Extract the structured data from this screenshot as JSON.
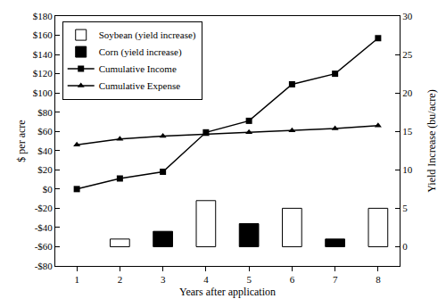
{
  "chart_data": {
    "type": "bar",
    "x_label": "Years after application",
    "y_label": "$ per acre",
    "y2_label": "Yield Increase (bu/acre)",
    "x": [
      1,
      2,
      3,
      4,
      5,
      6,
      7,
      8
    ],
    "xlim": [
      0.5,
      8.5
    ],
    "xticks": [
      1,
      2,
      3,
      4,
      5,
      6,
      7,
      8
    ],
    "ylim": [
      -80,
      180
    ],
    "yticks": [
      {
        "value": -80,
        "label": "-$80"
      },
      {
        "value": -60,
        "label": "-$60"
      },
      {
        "value": -40,
        "label": "-$40"
      },
      {
        "value": -20,
        "label": "-$20"
      },
      {
        "value": 0,
        "label": "$0"
      },
      {
        "value": 20,
        "label": "$20"
      },
      {
        "value": 40,
        "label": "$40"
      },
      {
        "value": 60,
        "label": "$60"
      },
      {
        "value": 80,
        "label": "$80"
      },
      {
        "value": 100,
        "label": "$100"
      },
      {
        "value": 120,
        "label": "$120"
      },
      {
        "value": 140,
        "label": "$140"
      },
      {
        "value": 160,
        "label": "$160"
      },
      {
        "value": 180,
        "label": "$180"
      }
    ],
    "y2lim": [
      -2.5,
      30
    ],
    "y2ticks": [
      0,
      5,
      10,
      15,
      20,
      25,
      30
    ],
    "grid": false,
    "legend": "upper left",
    "series": [
      {
        "name": "Soybean (yield increase)",
        "type": "bar",
        "axis": "y2",
        "color": "#ffffff",
        "values": [
          null,
          1,
          null,
          6,
          null,
          5,
          null,
          5
        ]
      },
      {
        "name": "Corn (yield increase)",
        "type": "bar",
        "axis": "y2",
        "color": "#000000",
        "values": [
          null,
          null,
          2,
          null,
          3,
          null,
          1,
          null
        ]
      },
      {
        "name": "Cumulative Income",
        "type": "line",
        "color": "#000000",
        "marker": "square",
        "values": [
          0,
          11,
          18,
          59,
          71,
          109,
          120,
          157
        ]
      },
      {
        "name": "Cumulative Expense",
        "type": "line",
        "color": "#000000",
        "marker": "triangle-up",
        "values": [
          46,
          52,
          55,
          57,
          59,
          61,
          63,
          66
        ]
      }
    ]
  }
}
